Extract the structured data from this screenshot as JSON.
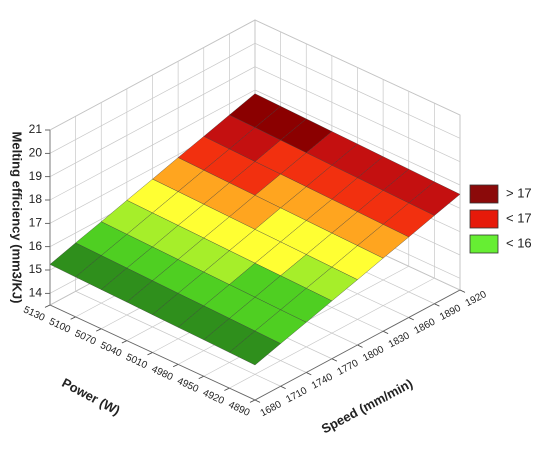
{
  "chart_data": {
    "type": "surface",
    "z_label": "Melting efficiency (mm3/KJ)",
    "x_label": "Speed (mm/min)",
    "y_label": "Power (W)",
    "x": [
      1680,
      1710,
      1740,
      1770,
      1800,
      1830,
      1860,
      1890,
      1920
    ],
    "y": [
      4890,
      4920,
      4950,
      4980,
      5010,
      5040,
      5070,
      5100,
      5130
    ],
    "z": [
      [
        15.0,
        15.33,
        15.65,
        15.98,
        16.3,
        16.63,
        16.95,
        17.28,
        17.6
      ],
      [
        15.03,
        15.36,
        15.68,
        16.01,
        16.33,
        16.66,
        16.98,
        17.31,
        17.63
      ],
      [
        15.06,
        15.39,
        15.71,
        16.04,
        16.36,
        16.69,
        17.01,
        17.34,
        17.66
      ],
      [
        15.09,
        15.42,
        15.74,
        16.07,
        16.39,
        16.72,
        17.04,
        17.37,
        17.69
      ],
      [
        15.12,
        15.45,
        15.77,
        16.1,
        16.42,
        16.75,
        17.07,
        17.4,
        17.72
      ],
      [
        15.15,
        15.48,
        15.8,
        16.13,
        16.45,
        16.78,
        17.1,
        17.43,
        17.75
      ],
      [
        15.18,
        15.51,
        15.83,
        16.16,
        16.48,
        16.81,
        17.13,
        17.46,
        17.78
      ],
      [
        15.21,
        15.54,
        15.86,
        16.19,
        16.51,
        16.84,
        17.16,
        17.49,
        17.81
      ],
      [
        15.24,
        15.57,
        15.89,
        16.22,
        16.54,
        16.87,
        17.19,
        17.52,
        17.84
      ]
    ],
    "xlim": [
      1680,
      1920
    ],
    "ylim": [
      4890,
      5130
    ],
    "zlim": [
      13.5,
      21
    ],
    "xticks": [
      1680,
      1710,
      1740,
      1770,
      1800,
      1830,
      1860,
      1890,
      1920
    ],
    "yticks": [
      4890,
      4920,
      4950,
      4980,
      5010,
      5040,
      5070,
      5100,
      5130
    ],
    "zticks": [
      14,
      15,
      16,
      17,
      18,
      19,
      20,
      21
    ],
    "grid": true,
    "colormap": [
      {
        "value": 15.0,
        "color": "#2f8f1c"
      },
      {
        "value": 15.5,
        "color": "#4fcf22"
      },
      {
        "value": 15.9,
        "color": "#a6ee2a"
      },
      {
        "value": 16.2,
        "color": "#ffff33"
      },
      {
        "value": 16.6,
        "color": "#ffa51f"
      },
      {
        "value": 16.95,
        "color": "#f2300f"
      },
      {
        "value": 17.3,
        "color": "#c41010"
      },
      {
        "value": 17.6,
        "color": "#8b0000"
      }
    ],
    "legend_position": "right",
    "legend": [
      {
        "label": "> 17",
        "color": "#8b0a0a"
      },
      {
        "label": "< 17",
        "color": "#e61a0a"
      },
      {
        "label": "< 16",
        "color": "#66ee33"
      }
    ]
  }
}
